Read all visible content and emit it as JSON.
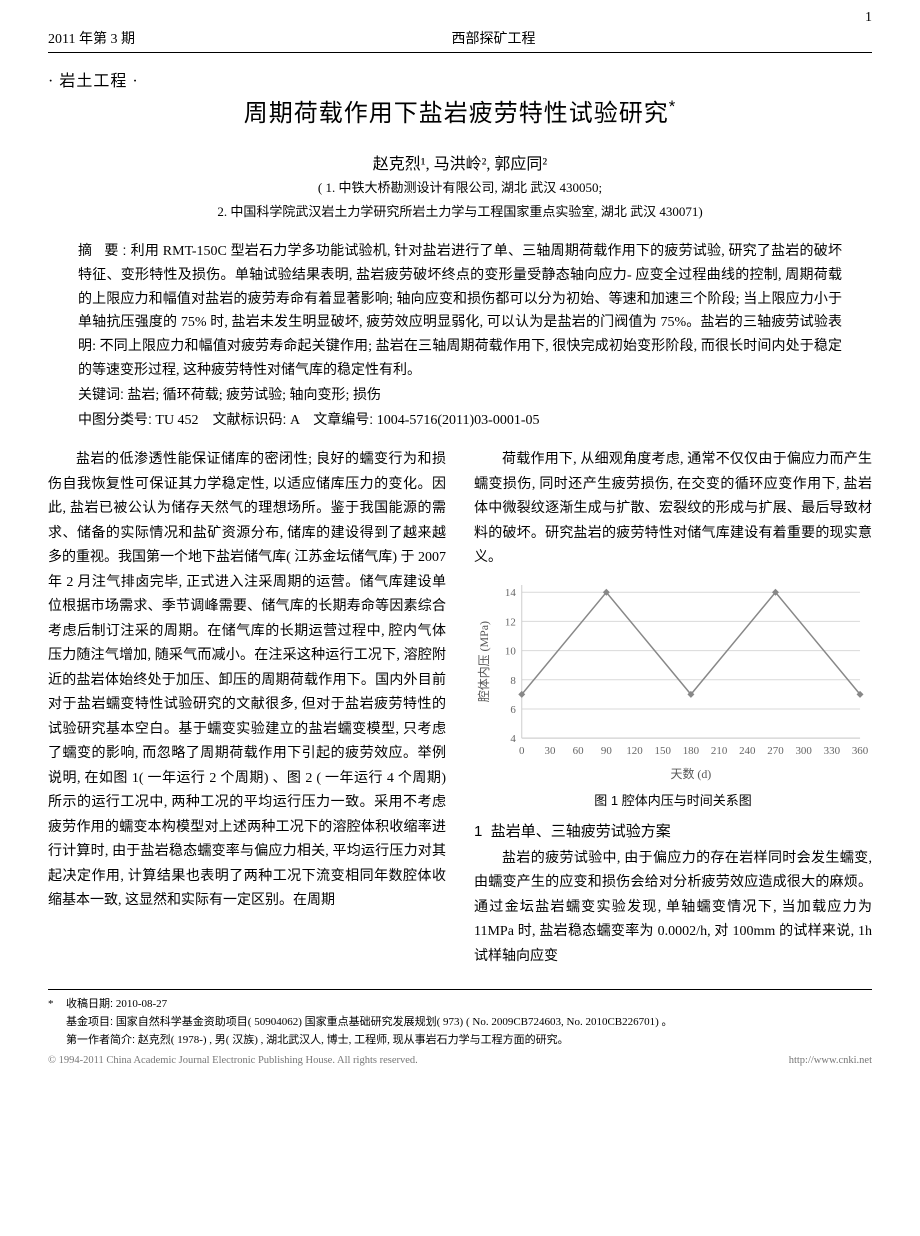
{
  "header": {
    "issue": "2011 年第 3 期",
    "journal": "西部探矿工程",
    "page_top": "1"
  },
  "section_label": "· 岩土工程 ·",
  "title": "周期荷载作用下盐岩疲劳特性试验研究",
  "title_note": "*",
  "authors_line": "赵克烈¹, 马洪岭², 郭应同²",
  "affiliations": [
    "( 1. 中铁大桥勘测设计有限公司, 湖北 武汉 430050;",
    "2. 中国科学院武汉岩土力学研究所岩土力学与工程国家重点实验室, 湖北 武汉 430071)"
  ],
  "abstract": {
    "label": "摘  要:",
    "text": "利用 RMT-150C 型岩石力学多功能试验机, 针对盐岩进行了单、三轴周期荷载作用下的疲劳试验, 研究了盐岩的破坏特征、变形特性及损伤。单轴试验结果表明, 盐岩疲劳破坏终点的变形量受静态轴向应力- 应变全过程曲线的控制, 周期荷载的上限应力和幅值对盐岩的疲劳寿命有着显著影响; 轴向应变和损伤都可以分为初始、等速和加速三个阶段; 当上限应力小于单轴抗压强度的 75% 时, 盐岩未发生明显破坏, 疲劳效应明显弱化, 可以认为是盐岩的门阀值为 75%。盐岩的三轴疲劳试验表明: 不同上限应力和幅值对疲劳寿命起关键作用; 盐岩在三轴周期荷载作用下, 很快完成初始变形阶段, 而很长时间内处于稳定的等速变形过程, 这种疲劳特性对储气库的稳定性有利。"
  },
  "keywords": {
    "label": "关键词:",
    "text": "盐岩; 循环荷载; 疲劳试验; 轴向变形; 损伤"
  },
  "clc": {
    "label": "中图分类号:",
    "text": "TU 452"
  },
  "doccode": {
    "label": "文献标识码:",
    "text": "A"
  },
  "artno": {
    "label": "文章编号:",
    "text": "1004-5716(2011)03-0001-05"
  },
  "body": {
    "left_paras": [
      "盐岩的低渗透性能保证储库的密闭性; 良好的蠕变行为和损伤自我恢复性可保证其力学稳定性, 以适应储库压力的变化。因此, 盐岩已被公认为储存天然气的理想场所。鉴于我国能源的需求、储备的实际情况和盐矿资源分布, 储库的建设得到了越来越多的重视。我国第一个地下盐岩储气库( 江苏金坛储气库) 于 2007 年 2 月注气排卤完毕, 正式进入注采周期的运营。储气库建设单位根据市场需求、季节调峰需要、储气库的长期寿命等因素综合考虑后制订注采的周期。在储气库的长期运营过程中, 腔内气体压力随注气增加, 随采气而减小。在注采这种运行工况下, 溶腔附近的盐岩体始终处于加压、卸压的周期荷载作用下。国内外目前对于盐岩蠕变特性试验研究的文献很多, 但对于盐岩疲劳特性的试验研究基本空白。基于蠕变实验建立的盐岩蠕变模型, 只考虑了蠕变的影响, 而忽略了周期荷载作用下引起的疲劳效应。举例说明, 在如图 1( 一年运行 2 个周期) 、图 2 ( 一年运行 4 个周期) 所示的运行工况中, 两种工况的平均运行压力一致。采用不考虑疲劳作用的蠕变本构模型对上述两种工况下的溶腔体积收缩率进行计算时, 由于盐岩稳态蠕变率与偏应力相关, 平均运行压力对其起决定作用, 计算结果也表明了两种工况下流变相同年数腔体收缩基本一致, 这显然和实际有一定区别。在周期"
    ],
    "right_top_para": "荷载作用下, 从细观角度考虑, 通常不仅仅由于偏应力而产生蠕变损伤, 同时还产生疲劳损伤, 在交变的循环应变作用下, 盐岩体中微裂纹逐渐生成与扩散、宏裂纹的形成与扩展、最后导致材料的破坏。研究盐岩的疲劳特性对储气库建设有着重要的现实意义。",
    "section1": {
      "num": "1",
      "title": "盐岩单、三轴疲劳试验方案"
    },
    "right_bottom_para": "盐岩的疲劳试验中, 由于偏应力的存在岩样同时会发生蠕变, 由蠕变产生的应变和损伤会给对分析疲劳效应造成很大的麻烦。通过金坛盐岩蠕变实验发现, 单轴蠕变情况下, 当加载应力为 11MPa 时, 盐岩稳态蠕变率为 0.0002/h, 对 100mm 的试样来说, 1h 试样轴向应变"
  },
  "figure1": {
    "caption": "图 1  腔体内压与时间关系图",
    "xlabel": "天数 (d)",
    "ylabel": "腔体内压 (MPa)",
    "x_ticks": [
      0,
      30,
      60,
      90,
      120,
      150,
      180,
      210,
      240,
      270,
      300,
      330,
      360
    ],
    "y_ticks": [
      4,
      6,
      8,
      10,
      12,
      14
    ],
    "xlim": [
      0,
      360
    ],
    "ylim": [
      4,
      14.5
    ],
    "data_x": [
      0,
      90,
      180,
      270,
      360
    ],
    "data_y": [
      7,
      14,
      7,
      14,
      7
    ],
    "line_color": "#888888",
    "grid_color": "#d9d9d9",
    "background_color": "#ffffff",
    "marker_style": "diamond"
  },
  "footnotes": {
    "star": "*",
    "received": {
      "label": "收稿日期:",
      "text": "2010-08-27"
    },
    "fund": {
      "label": "基金项目:",
      "text": "国家自然科学基金资助项目( 50904062) 国家重点基础研究发展规划( 973)  ( No. 2009CB724603, No. 2010CB226701) 。"
    },
    "author": {
      "label": "第一作者简介:",
      "text": "赵克烈( 1978-) , 男( 汉族) , 湖北武汉人, 博士, 工程师, 现从事岩石力学与工程方面的研究。"
    }
  },
  "copyright": {
    "left": "© 1994-2011 China Academic Journal Electronic Publishing House. All rights reserved.",
    "right": "http://www.cnki.net"
  }
}
